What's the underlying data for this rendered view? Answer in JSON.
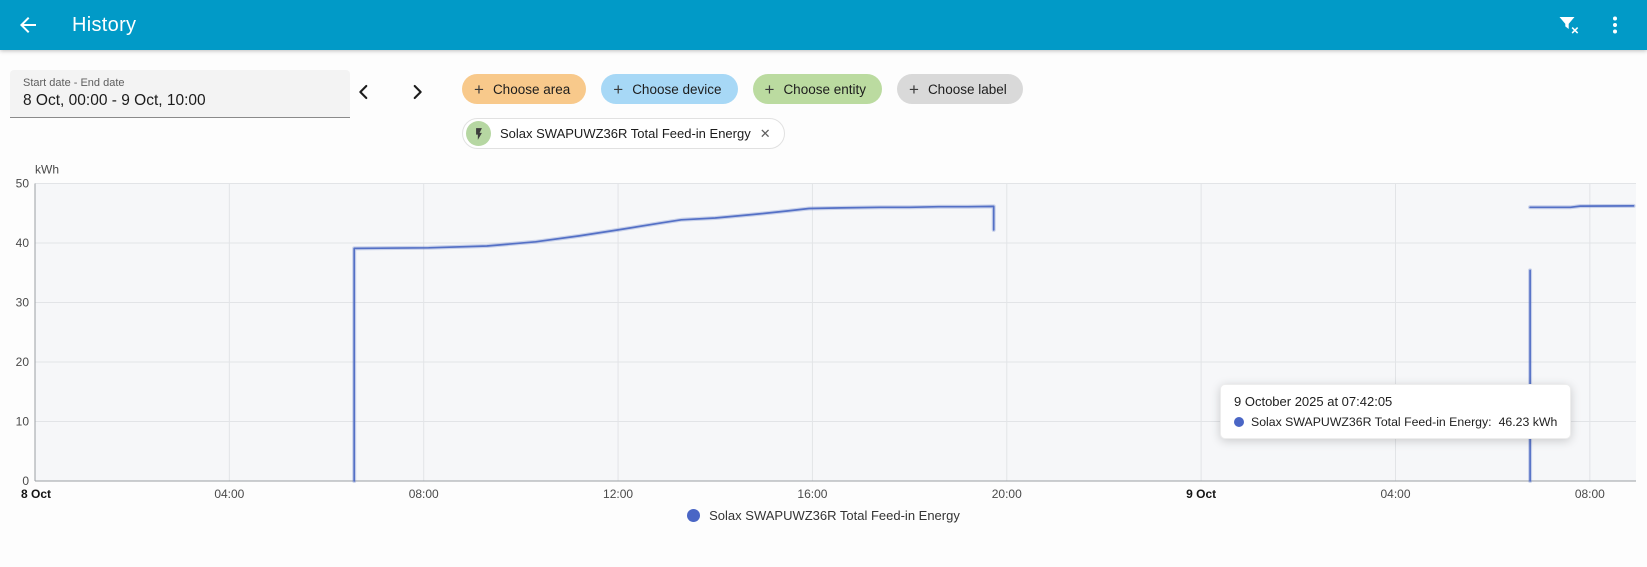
{
  "app_bar": {
    "title": "History",
    "bg_color": "#019ac7"
  },
  "toolbar": {
    "date_range": {
      "label": "Start date - End date",
      "value": "8 Oct, 00:00 - 9 Oct, 10:00"
    },
    "filter_chips": [
      {
        "label": "Choose area",
        "color": "#f8c98b"
      },
      {
        "label": "Choose device",
        "color": "#a7d8f6"
      },
      {
        "label": "Choose entity",
        "color": "#bbdba0"
      },
      {
        "label": "Choose label",
        "color": "#d9d9d9"
      }
    ],
    "entity_chip": {
      "label": "Solax SWAPUWZ36R Total Feed-in Energy",
      "icon_bg": "#b6d7a2",
      "close_glyph": "✕"
    }
  },
  "chart_data": {
    "type": "line",
    "unit_label": "kWh",
    "ylim": [
      0,
      50
    ],
    "yticks": [
      0,
      10,
      20,
      30,
      40,
      50
    ],
    "x_unit": "hours since 8 Oct 2025 00:00",
    "xlim": [
      0,
      32.95
    ],
    "xticks": [
      {
        "h": 0,
        "label": "8 Oct",
        "bold": true
      },
      {
        "h": 4,
        "label": "04:00"
      },
      {
        "h": 8,
        "label": "08:00"
      },
      {
        "h": 12,
        "label": "12:00"
      },
      {
        "h": 16,
        "label": "16:00"
      },
      {
        "h": 20,
        "label": "20:00"
      },
      {
        "h": 24,
        "label": "9 Oct",
        "bold": true
      },
      {
        "h": 28,
        "label": "04:00"
      },
      {
        "h": 32,
        "label": "08:00"
      }
    ],
    "grid": true,
    "legend_position": "bottom",
    "series": [
      {
        "name": "Solax SWAPUWZ36R Total Feed-in Energy",
        "color": "#5470c6",
        "segments": [
          [
            [
              6.57,
              0
            ],
            [
              6.57,
              39.1
            ],
            [
              8.1,
              39.2
            ],
            [
              9.3,
              39.5
            ],
            [
              10.3,
              40.2
            ],
            [
              11.2,
              41.2
            ],
            [
              12.0,
              42.2
            ],
            [
              12.9,
              43.4
            ],
            [
              13.3,
              43.9
            ],
            [
              14.0,
              44.2
            ],
            [
              14.8,
              44.8
            ],
            [
              15.5,
              45.4
            ],
            [
              15.93,
              45.8
            ],
            [
              16.6,
              45.9
            ],
            [
              17.4,
              46.0
            ],
            [
              18.0,
              46.0
            ],
            [
              18.6,
              46.1
            ],
            [
              19.2,
              46.1
            ],
            [
              19.73,
              46.15
            ],
            [
              19.73,
              42.2
            ]
          ],
          [
            [
              30.77,
              0
            ],
            [
              30.77,
              35.4
            ]
          ],
          [
            [
              30.77,
              46.0
            ],
            [
              31.6,
              46.0
            ],
            [
              31.8,
              46.2
            ],
            [
              32.9,
              46.23
            ]
          ]
        ]
      }
    ]
  },
  "tooltip": {
    "timestamp": "9 October 2025 at 07:42:05",
    "entries": [
      {
        "label": "Solax SWAPUWZ36R Total Feed-in Energy:",
        "value": "46.23 kWh",
        "color": "#4a66c5"
      }
    ]
  },
  "legend": [
    {
      "label": "Solax SWAPUWZ36R Total Feed-in Energy",
      "color": "#4a66c5"
    }
  ]
}
